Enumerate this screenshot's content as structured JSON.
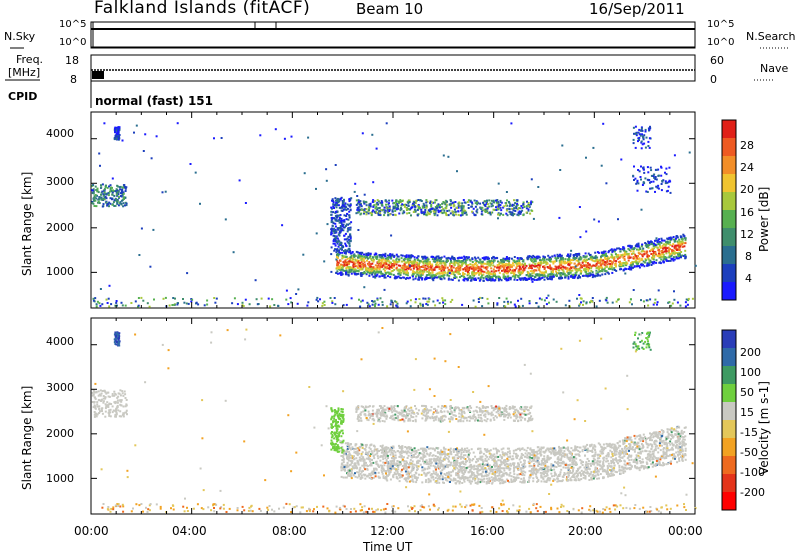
{
  "header": {
    "title": "Falkland Islands (fitACF)",
    "beam": "Beam 10",
    "date": "16/Sep/2011"
  },
  "nsky_panel": {
    "left_label": "N.Sky",
    "right_label": "N.Search",
    "left_ticks": [
      "10^5",
      "10^0"
    ],
    "right_ticks": [
      "10^5",
      "10^0"
    ]
  },
  "freq_panel": {
    "left_label_1": "Freq.",
    "left_label_2": "[MHz]",
    "right_label": "Nave",
    "left_ticks": [
      "18",
      "8"
    ],
    "right_ticks": [
      "60",
      "0"
    ]
  },
  "cpid_panel": {
    "label": "CPID",
    "mode": "normal (fast) 151"
  },
  "colors": {
    "power_scale": [
      "#1a1aff",
      "#1c3fbd",
      "#2a6e8f",
      "#3f8e6c",
      "#57b050",
      "#a8c83c",
      "#f0c430",
      "#f28e28",
      "#ee5a22",
      "#e02018"
    ],
    "velocity_scale": [
      "#2a3db8",
      "#2f6aa8",
      "#3e9a62",
      "#6fcf3e",
      "#c9c9c2",
      "#e3c75a",
      "#f2a222",
      "#ee6a1f",
      "#e4341a",
      "#ff0000"
    ]
  },
  "chart_data": [
    {
      "type": "heatmap",
      "name": "power",
      "ylabel": "Slant Range [km]",
      "yticks": [
        "4000",
        "3000",
        "2000",
        "1000"
      ],
      "ylim": [
        200,
        4600
      ],
      "xlim": [
        "00:00",
        "24:00"
      ],
      "colorbar_label": "Power [dB]",
      "colorbar_ticks": [
        "28",
        "24",
        "20",
        "16",
        "12",
        "8",
        "4"
      ]
    },
    {
      "type": "heatmap",
      "name": "velocity",
      "ylabel": "Slant Range [km]",
      "yticks": [
        "4000",
        "3000",
        "2000",
        "1000"
      ],
      "ylim": [
        200,
        4600
      ],
      "xlim": [
        "00:00",
        "24:00"
      ],
      "xlabel": "Time UT",
      "xticks": [
        "00:00",
        "04:00",
        "08:00",
        "12:00",
        "16:00",
        "20:00",
        "00:00"
      ],
      "colorbar_label": "Velocity [m s-1]",
      "colorbar_ticks": [
        "200",
        "100",
        "50",
        "15",
        "-15",
        "-50",
        "-100",
        "-200"
      ]
    }
  ]
}
